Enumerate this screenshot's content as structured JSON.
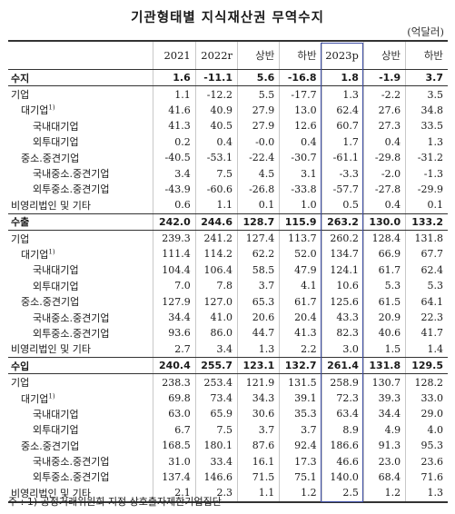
{
  "title": "기관형태별 지식재산권 무역수지",
  "unit": "(억달러)",
  "columns": [
    "2021",
    "2022r",
    "상반",
    "하반",
    "2023p",
    "상반",
    "하반"
  ],
  "rows": [
    {
      "label": "수지",
      "level": 0,
      "kind": "main",
      "values": [
        "1.6",
        "-11.1",
        "5.6",
        "-16.8",
        "1.8",
        "-1.9",
        "3.7"
      ]
    },
    {
      "label": "기업",
      "level": 0,
      "values": [
        "1.1",
        "-12.2",
        "5.5",
        "-17.7",
        "1.3",
        "-2.2",
        "3.5"
      ]
    },
    {
      "label": "대기업",
      "sup": "1)",
      "level": 1,
      "values": [
        "41.6",
        "40.9",
        "27.9",
        "13.0",
        "62.4",
        "27.6",
        "34.8"
      ]
    },
    {
      "label": "국내대기업",
      "level": 2,
      "values": [
        "41.3",
        "40.5",
        "27.9",
        "12.6",
        "60.7",
        "27.3",
        "33.5"
      ]
    },
    {
      "label": "외투대기업",
      "level": 2,
      "values": [
        "0.2",
        "0.4",
        "-0.0",
        "0.4",
        "1.7",
        "0.4",
        "1.3"
      ]
    },
    {
      "label": "중소.중견기업",
      "level": 1,
      "values": [
        "-40.5",
        "-53.1",
        "-22.4",
        "-30.7",
        "-61.1",
        "-29.8",
        "-31.2"
      ]
    },
    {
      "label": "국내중소.중견기업",
      "level": 2,
      "values": [
        "3.4",
        "7.5",
        "4.5",
        "3.1",
        "-3.3",
        "-2.0",
        "-1.3"
      ]
    },
    {
      "label": "외투중소.중견기업",
      "level": 2,
      "values": [
        "-43.9",
        "-60.6",
        "-26.8",
        "-33.8",
        "-57.7",
        "-27.8",
        "-29.9"
      ]
    },
    {
      "label": "비영리법인 및 기타",
      "level": 0,
      "kind": "before-main",
      "values": [
        "0.6",
        "1.1",
        "0.1",
        "1.0",
        "0.5",
        "0.4",
        "0.1"
      ]
    },
    {
      "label": "수출",
      "level": 0,
      "kind": "main",
      "values": [
        "242.0",
        "244.6",
        "128.7",
        "115.9",
        "263.2",
        "130.0",
        "133.2"
      ]
    },
    {
      "label": "기업",
      "level": 0,
      "values": [
        "239.3",
        "241.2",
        "127.4",
        "113.7",
        "260.2",
        "128.4",
        "131.8"
      ]
    },
    {
      "label": "대기업",
      "sup": "1)",
      "level": 1,
      "values": [
        "111.4",
        "114.2",
        "62.2",
        "52.0",
        "134.7",
        "66.9",
        "67.7"
      ]
    },
    {
      "label": "국내대기업",
      "level": 2,
      "values": [
        "104.4",
        "106.4",
        "58.5",
        "47.9",
        "124.1",
        "61.7",
        "62.4"
      ]
    },
    {
      "label": "외투대기업",
      "level": 2,
      "values": [
        "7.0",
        "7.8",
        "3.7",
        "4.1",
        "10.6",
        "5.3",
        "5.3"
      ]
    },
    {
      "label": "중소.중견기업",
      "level": 1,
      "values": [
        "127.9",
        "127.0",
        "65.3",
        "61.7",
        "125.6",
        "61.5",
        "64.1"
      ]
    },
    {
      "label": "국내중소.중견기업",
      "level": 2,
      "values": [
        "34.4",
        "41.0",
        "20.6",
        "20.4",
        "43.3",
        "20.9",
        "22.3"
      ]
    },
    {
      "label": "외투중소.중견기업",
      "level": 2,
      "values": [
        "93.6",
        "86.0",
        "44.7",
        "41.3",
        "82.3",
        "40.6",
        "41.7"
      ]
    },
    {
      "label": "비영리법인 및 기타",
      "level": 0,
      "kind": "before-main",
      "values": [
        "2.7",
        "3.4",
        "1.3",
        "2.2",
        "3.0",
        "1.5",
        "1.4"
      ]
    },
    {
      "label": "수입",
      "level": 0,
      "kind": "main",
      "values": [
        "240.4",
        "255.7",
        "123.1",
        "132.7",
        "261.4",
        "131.8",
        "129.5"
      ]
    },
    {
      "label": "기업",
      "level": 0,
      "values": [
        "238.3",
        "253.4",
        "121.9",
        "131.5",
        "258.9",
        "130.7",
        "128.2"
      ]
    },
    {
      "label": "대기업",
      "sup": "1)",
      "level": 1,
      "values": [
        "69.8",
        "73.4",
        "34.3",
        "39.1",
        "72.3",
        "39.3",
        "33.0"
      ]
    },
    {
      "label": "국내대기업",
      "level": 2,
      "values": [
        "63.0",
        "65.9",
        "30.6",
        "35.3",
        "63.4",
        "34.4",
        "29.0"
      ]
    },
    {
      "label": "외투대기업",
      "level": 2,
      "values": [
        "6.7",
        "7.5",
        "3.7",
        "3.7",
        "8.9",
        "4.9",
        "4.0"
      ]
    },
    {
      "label": "중소.중견기업",
      "level": 1,
      "values": [
        "168.5",
        "180.1",
        "87.6",
        "92.4",
        "186.6",
        "91.3",
        "95.3"
      ]
    },
    {
      "label": "국내중소.중견기업",
      "level": 2,
      "values": [
        "31.0",
        "33.4",
        "16.1",
        "17.3",
        "46.6",
        "23.0",
        "23.6"
      ]
    },
    {
      "label": "외투중소.중견기업",
      "level": 2,
      "values": [
        "137.4",
        "146.6",
        "71.5",
        "75.1",
        "140.0",
        "68.4",
        "71.6"
      ]
    },
    {
      "label": "비영리법인 및 기타",
      "level": 0,
      "kind": "last",
      "values": [
        "2.1",
        "2.3",
        "1.1",
        "1.2",
        "2.5",
        "1.2",
        "1.3"
      ]
    }
  ],
  "footnote": "주 : 1) 공정거래위원회 지정 상호출자제한기업집단",
  "colors": {
    "highlight_box": "#3f4fa6",
    "rule": "#333333",
    "grid": "#c8c8c8"
  }
}
